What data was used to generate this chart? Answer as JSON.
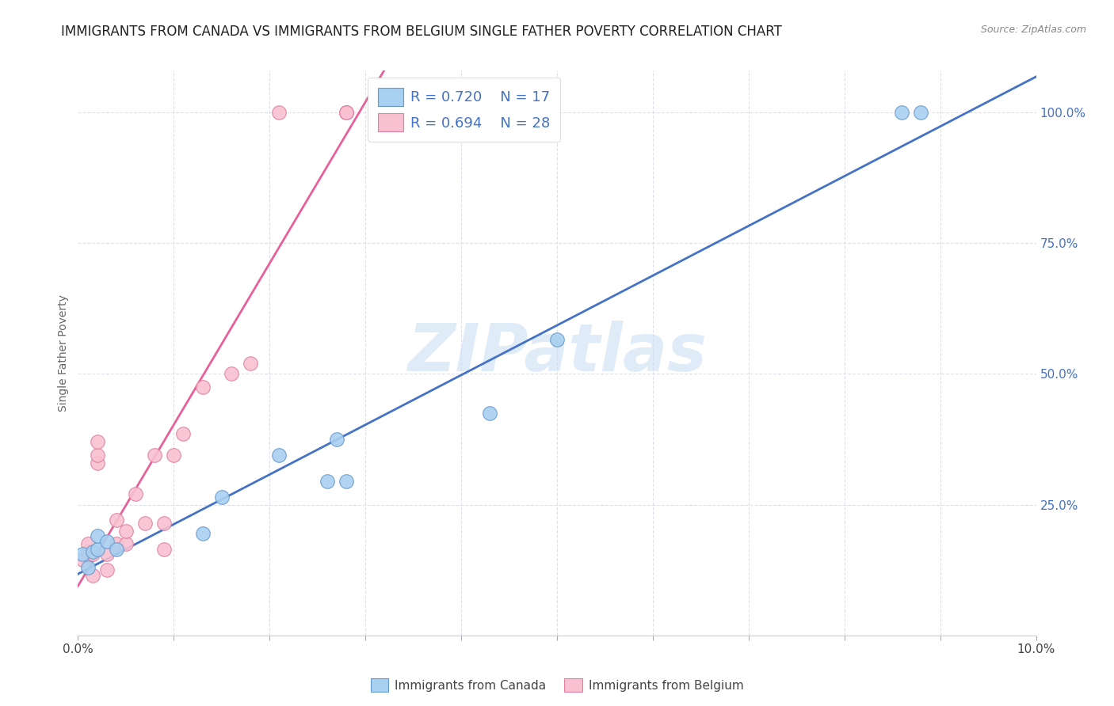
{
  "title": "IMMIGRANTS FROM CANADA VS IMMIGRANTS FROM BELGIUM SINGLE FATHER POVERTY CORRELATION CHART",
  "source": "Source: ZipAtlas.com",
  "ylabel": "Single Father Poverty",
  "canada_R": 0.72,
  "canada_N": 17,
  "belgium_R": 0.694,
  "belgium_N": 28,
  "canada_color": "#A8D0F0",
  "belgium_color": "#F8C0D0",
  "canada_edge_color": "#6699CC",
  "belgium_edge_color": "#E080A0",
  "canada_line_color": "#4472C4",
  "belgium_line_color": "#E8609A",
  "watermark": "ZIPatlas",
  "canada_x": [
    0.0005,
    0.001,
    0.0015,
    0.002,
    0.002,
    0.003,
    0.004,
    0.013,
    0.015,
    0.021,
    0.026,
    0.027,
    0.028,
    0.043,
    0.05,
    0.086,
    0.088
  ],
  "canada_y": [
    0.155,
    0.13,
    0.16,
    0.165,
    0.19,
    0.18,
    0.165,
    0.195,
    0.265,
    0.345,
    0.295,
    0.375,
    0.295,
    0.425,
    0.565,
    1.0,
    1.0
  ],
  "belgium_x": [
    0.0005,
    0.001,
    0.001,
    0.0015,
    0.0015,
    0.002,
    0.002,
    0.002,
    0.003,
    0.003,
    0.004,
    0.004,
    0.005,
    0.005,
    0.006,
    0.007,
    0.008,
    0.009,
    0.009,
    0.01,
    0.011,
    0.013,
    0.016,
    0.018,
    0.021,
    0.028,
    0.028,
    0.028
  ],
  "belgium_y": [
    0.145,
    0.16,
    0.175,
    0.115,
    0.155,
    0.33,
    0.345,
    0.37,
    0.125,
    0.155,
    0.175,
    0.22,
    0.175,
    0.2,
    0.27,
    0.215,
    0.345,
    0.165,
    0.215,
    0.345,
    0.385,
    0.475,
    0.5,
    0.52,
    1.0,
    1.0,
    1.0,
    1.0
  ],
  "background_color": "#FFFFFF",
  "grid_color": "#E0E0EC",
  "xlim": [
    0.0,
    0.1
  ],
  "ylim": [
    0.0,
    1.08
  ],
  "title_fontsize": 12,
  "axis_label_fontsize": 10,
  "tick_fontsize": 11
}
